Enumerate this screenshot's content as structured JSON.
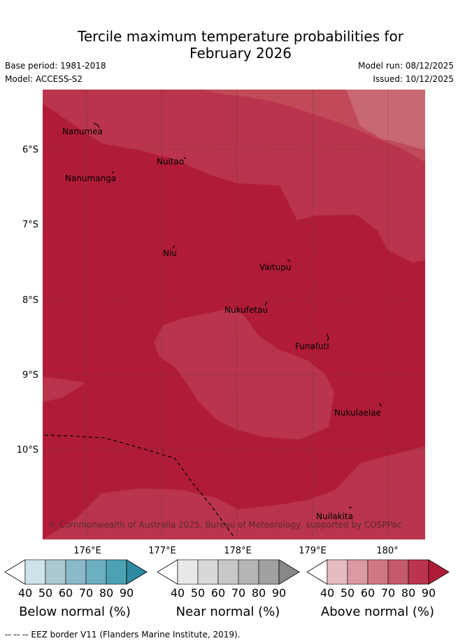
{
  "title": {
    "line1": "Tercile maximum temperature probabilities for",
    "line2": "February 2026"
  },
  "meta": {
    "base_period": "Base period: 1981-2018",
    "model": "Model: ACCESS-S2",
    "model_run": "Model run: 08/12/2025",
    "issued": "Issued: 10/12/2025"
  },
  "map": {
    "lat_labels": [
      "6°S",
      "7°S",
      "8°S",
      "9°S",
      "10°S"
    ],
    "lon_labels": [
      "176°E",
      "177°E",
      "178°E",
      "179°E",
      "180°"
    ],
    "places": [
      "Nanumea",
      "Nuitao",
      "Nanumanga",
      "Niu",
      "Vaitupu",
      "Nukufetau",
      "Funafuti",
      "Nukulaelae",
      "Nuilakita"
    ],
    "copyright": "© Commonwealth of Australia 2025, Bureau of Meteorology, supported by COSPPac"
  },
  "colorbars": [
    {
      "label": "Below normal (%)",
      "ticks": [
        "40",
        "50",
        "60",
        "70",
        "80",
        "90"
      ],
      "colors": [
        "#cce3ea",
        "#aac8cf",
        "#8ab9c7",
        "#6cafc0",
        "#4aa2b2",
        "#2e8aa0"
      ]
    },
    {
      "label": "Near normal (%)",
      "ticks": [
        "40",
        "50",
        "60",
        "70",
        "80",
        "90"
      ],
      "colors": [
        "#e8e8e8",
        "#d8d8d8",
        "#c8c8c8",
        "#b5b5b5",
        "#a0a0a0",
        "#888888"
      ]
    },
    {
      "label": "Above normal (%)",
      "ticks": [
        "40",
        "50",
        "60",
        "70",
        "80",
        "90"
      ],
      "colors": [
        "#e4bcc2",
        "#da9aa3",
        "#d07882",
        "#c45a69",
        "#b9344c",
        "#b01c38"
      ]
    }
  ],
  "footnote": "--  --  -- EEZ border V11 (Flanders Marine Institute, 2019)."
}
